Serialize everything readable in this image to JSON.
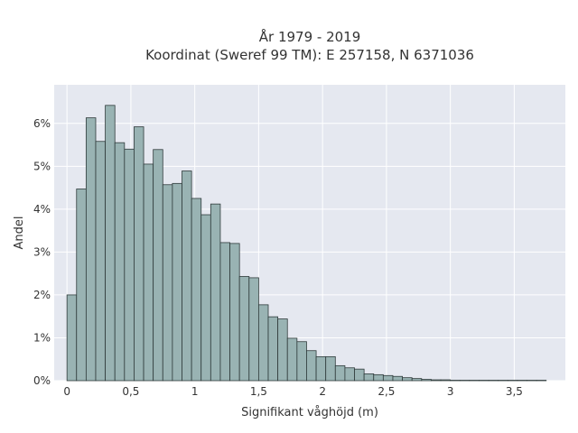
{
  "chart_data": {
    "type": "bar",
    "title_lines": [
      "År 1979 - 2019",
      "Koordinat (Sweref 99 TM): E 257158, N 6371036"
    ],
    "xlabel": "Signifikant våghöjd (m)",
    "ylabel": "Andel",
    "xlim": [
      -0.1,
      3.9
    ],
    "ylim": [
      0,
      6.9
    ],
    "x_ticks": [
      0,
      0.5,
      1,
      1.5,
      2,
      2.5,
      3,
      3.5
    ],
    "x_tick_labels": [
      "0",
      "0,5",
      "1",
      "1,5",
      "2",
      "2,5",
      "3",
      "3,5"
    ],
    "y_ticks": [
      0,
      1,
      2,
      3,
      4,
      5,
      6
    ],
    "y_tick_labels": [
      "0%",
      "1%",
      "2%",
      "3%",
      "4%",
      "5%",
      "6%"
    ],
    "bin_width": 0.075,
    "bin_start": 0,
    "values": [
      2.0,
      4.47,
      6.13,
      5.58,
      6.42,
      5.55,
      5.4,
      5.92,
      5.05,
      5.39,
      4.57,
      4.6,
      4.89,
      4.25,
      3.87,
      4.12,
      3.22,
      3.2,
      2.43,
      2.4,
      1.77,
      1.49,
      1.44,
      0.99,
      0.91,
      0.7,
      0.56,
      0.56,
      0.35,
      0.3,
      0.27,
      0.16,
      0.14,
      0.12,
      0.1,
      0.07,
      0.05,
      0.03,
      0.02,
      0.02,
      0.01,
      0.01,
      0.01,
      0.01,
      0.01,
      0.01,
      0.01,
      0.01,
      0.01,
      0.01
    ],
    "grid": true,
    "colors": {
      "bar_fill": "#99b3b3",
      "bar_edge": "#2f3b3b",
      "plot_bg": "#e5e8f0",
      "grid": "#ffffff"
    }
  }
}
